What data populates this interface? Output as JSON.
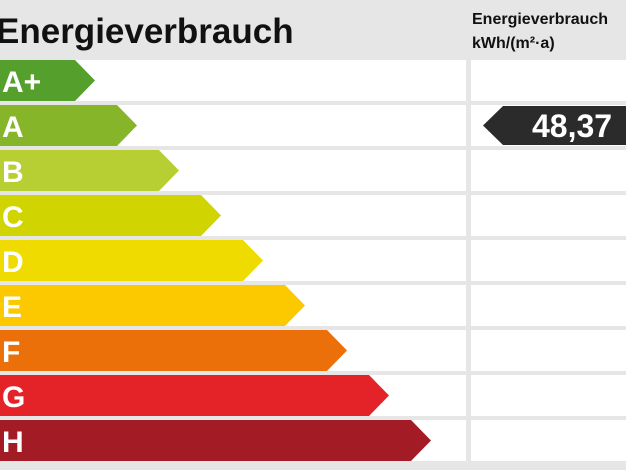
{
  "header": {
    "title": "Energieverbrauch",
    "unit_title": "Energieverbrauch",
    "unit": "kWh/(m²·a)"
  },
  "classes": [
    {
      "label": "A+",
      "color": "#55a02c"
    },
    {
      "label": "A",
      "color": "#86b52a"
    },
    {
      "label": "B",
      "color": "#b8cf33"
    },
    {
      "label": "C",
      "color": "#d0d400"
    },
    {
      "label": "D",
      "color": "#efdb00"
    },
    {
      "label": "E",
      "color": "#fcc800"
    },
    {
      "label": "F",
      "color": "#ec7009"
    },
    {
      "label": "G",
      "color": "#e42329"
    },
    {
      "label": "H",
      "color": "#a31c25"
    }
  ],
  "marker": {
    "value": "48,37",
    "class": "A",
    "color": "#2b2b2b"
  }
}
